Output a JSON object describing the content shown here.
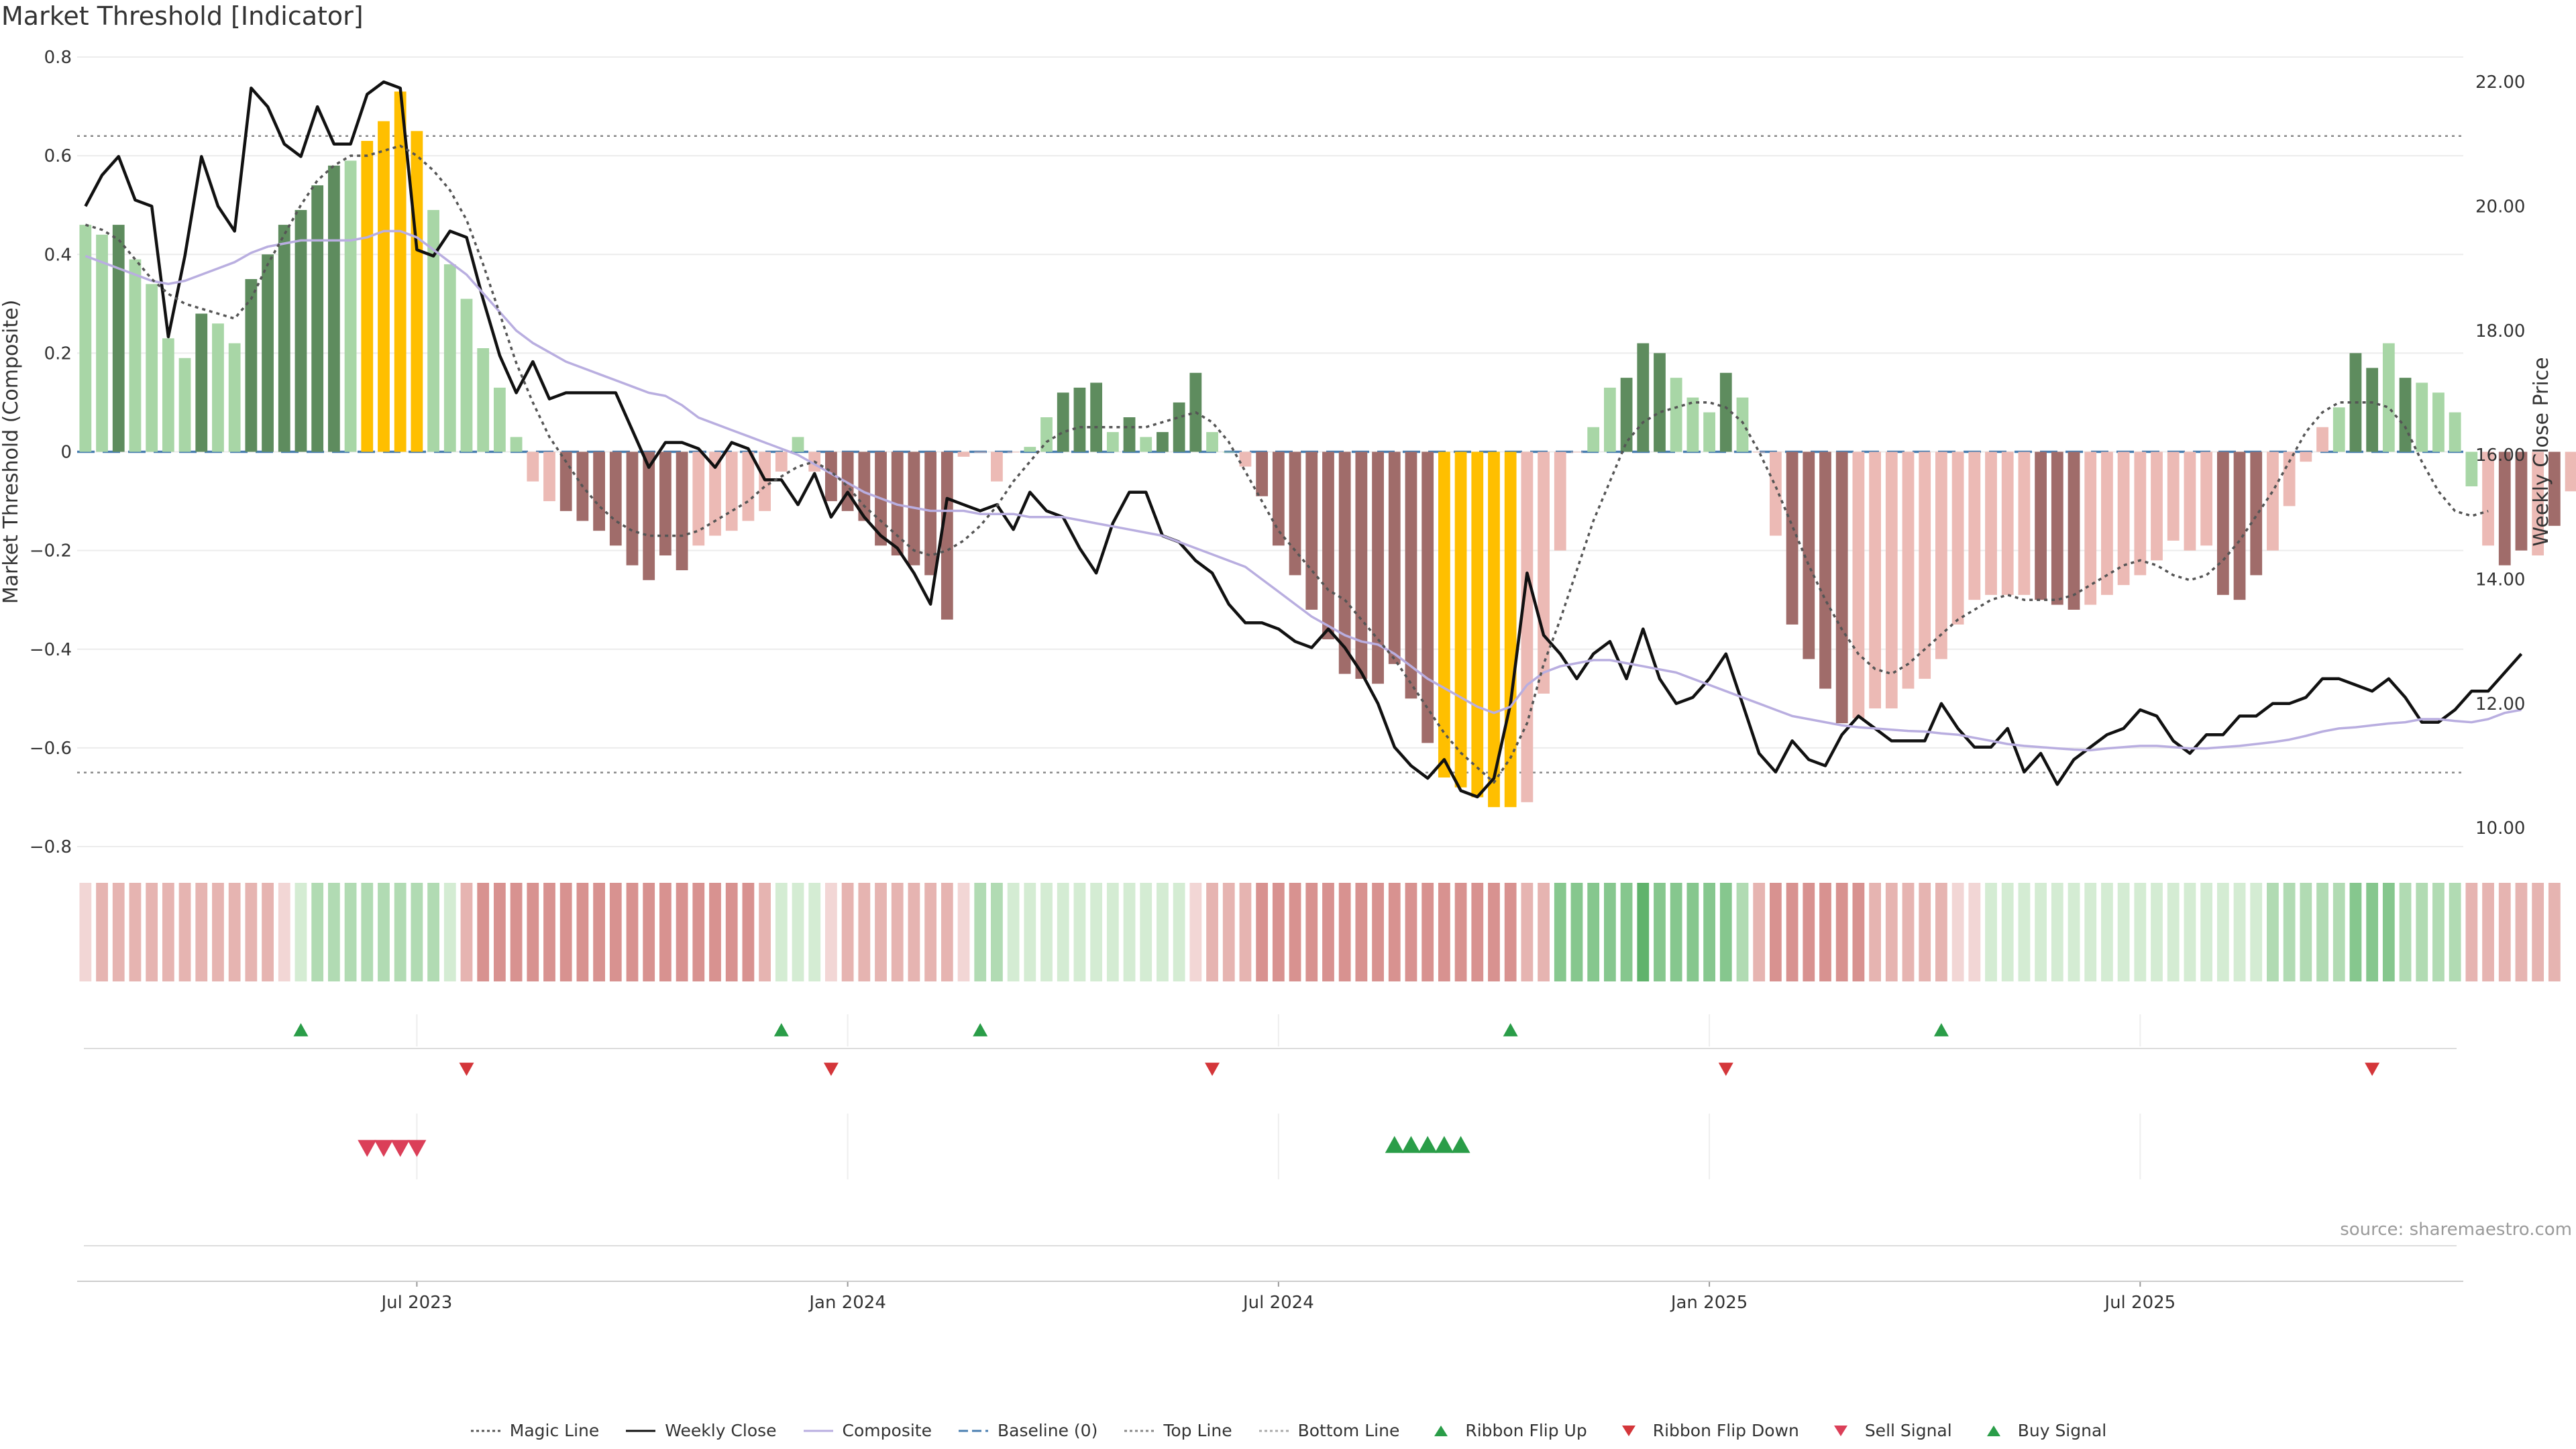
{
  "page": {
    "title": "Market Threshold [Indicator]",
    "source": "source: sharemaestro.com"
  },
  "colors": {
    "green_dark": "#5e8c5e",
    "green_light": "#a8d6a6",
    "red_dark": "#a06c6a",
    "red_light": "#ecbab5",
    "yellow": "#ffbf00",
    "close_line": "#111111",
    "composite_line": "#b9aee0",
    "magic_line": "#555555",
    "baseline": "#4a7fb0",
    "threshold_line": "#888888",
    "up_marker": "#2a9d48",
    "down_marker": "#d4363a",
    "sell_marker": "#db3f58",
    "buy_marker": "#2a9d48"
  },
  "legend": [
    {
      "label": "Magic Line",
      "icon": "dotted-line-icon",
      "color": "#555555"
    },
    {
      "label": "Weekly Close",
      "icon": "solid-line-icon",
      "color": "#111111"
    },
    {
      "label": "Composite",
      "icon": "solid-line-icon",
      "color": "#b9aee0"
    },
    {
      "label": "Baseline (0)",
      "icon": "dashed-line-icon",
      "color": "#4a7fb0"
    },
    {
      "label": "Top Line",
      "icon": "dotted-line-icon",
      "color": "#888888"
    },
    {
      "label": "Bottom Line",
      "icon": "dotted-line-icon",
      "color": "#aaaaaa"
    },
    {
      "label": "Ribbon Flip Up",
      "icon": "triangle-up-icon",
      "color": "#2a9d48"
    },
    {
      "label": "Ribbon Flip Down",
      "icon": "triangle-down-icon",
      "color": "#d4363a"
    },
    {
      "label": "Sell Signal",
      "icon": "triangle-down-icon",
      "color": "#db3f58"
    },
    {
      "label": "Buy Signal",
      "icon": "triangle-up-icon",
      "color": "#2a9d48"
    }
  ],
  "chart_data": {
    "type": "bar",
    "title": "Market Threshold [Indicator]",
    "ylabel": "Market Threshold (Composite)",
    "y2label": "Weekly Close Price",
    "ylim": [
      -0.8,
      0.8
    ],
    "y_ticks": [
      0.8,
      0.6,
      0.4,
      0.2,
      0,
      -0.2,
      -0.4,
      -0.6,
      -0.8
    ],
    "y_tick_labels": [
      "0.8",
      "0.6",
      "0.4",
      "0.2",
      "0",
      "−0.2",
      "−0.4",
      "−0.6",
      "−0.8"
    ],
    "y2lim": [
      9.7,
      22.4
    ],
    "y2_ticks": [
      22,
      20,
      18,
      16,
      14,
      12,
      10
    ],
    "y2_tick_labels": [
      "22.00",
      "20.00",
      "18.00",
      "16.00",
      "14.00",
      "12.00",
      "10.00"
    ],
    "x_range": [
      -0.5,
      143.5
    ],
    "x_ticks": [
      20,
      46,
      72,
      98,
      124
    ],
    "x_tick_labels": [
      "Jul 2023",
      "Jan 2024",
      "Jul 2024",
      "Jan 2025",
      "Jul 2025"
    ],
    "top_line": 0.64,
    "bottom_line": -0.65,
    "baseline": 0,
    "composite_bars": [
      0.46,
      0.44,
      0.46,
      0.39,
      0.34,
      0.23,
      0.19,
      0.28,
      0.26,
      0.22,
      0.35,
      0.4,
      0.46,
      0.49,
      0.54,
      0.58,
      0.59,
      0.63,
      0.67,
      0.73,
      0.65,
      0.49,
      0.38,
      0.31,
      0.21,
      0.13,
      0.03,
      -0.06,
      -0.1,
      -0.12,
      -0.14,
      -0.16,
      -0.19,
      -0.23,
      -0.26,
      -0.21,
      -0.24,
      -0.19,
      -0.17,
      -0.16,
      -0.14,
      -0.12,
      -0.04,
      0.03,
      -0.04,
      -0.1,
      -0.12,
      -0.14,
      -0.19,
      -0.21,
      -0.23,
      -0.25,
      -0.34,
      -0.01,
      0.0,
      -0.06,
      0.0,
      0.01,
      0.07,
      0.12,
      0.13,
      0.14,
      0.04,
      0.07,
      0.03,
      0.04,
      0.1,
      0.16,
      0.04,
      0.0,
      -0.03,
      -0.09,
      -0.19,
      -0.25,
      -0.32,
      -0.38,
      -0.45,
      -0.46,
      -0.47,
      -0.43,
      -0.5,
      -0.59,
      -0.66,
      -0.68,
      -0.7,
      -0.72,
      -0.72,
      -0.71,
      -0.49,
      -0.2,
      -0.0,
      0.05,
      0.13,
      0.15,
      0.22,
      0.2,
      0.15,
      0.11,
      0.08,
      0.16,
      0.11,
      0.0,
      -0.17,
      -0.35,
      -0.42,
      -0.48,
      -0.55,
      -0.54,
      -0.52,
      -0.52,
      -0.48,
      -0.46,
      -0.42,
      -0.35,
      -0.3,
      -0.29,
      -0.29,
      -0.29,
      -0.3,
      -0.31,
      -0.32,
      -0.31,
      -0.29,
      -0.27,
      -0.25,
      -0.22,
      -0.18,
      -0.2,
      -0.19,
      -0.29,
      -0.3,
      -0.25,
      -0.2,
      -0.11,
      -0.02,
      0.05,
      0.09,
      0.2,
      0.17,
      0.22,
      0.15,
      0.14,
      0.12,
      0.08,
      -0.07,
      -0.19,
      -0.23,
      -0.2,
      -0.21,
      -0.15,
      -0.08
    ],
    "bar_colors": [
      "gl",
      "gl",
      "gd",
      "gl",
      "gl",
      "gl",
      "gl",
      "gd",
      "gl",
      "gl",
      "gd",
      "gd",
      "gd",
      "gd",
      "gd",
      "gd",
      "gl",
      "y",
      "y",
      "y",
      "y",
      "gl",
      "gl",
      "gl",
      "gl",
      "gl",
      "gl",
      "rl",
      "rl",
      "rd",
      "rd",
      "rd",
      "rd",
      "rd",
      "rd",
      "rd",
      "rd",
      "rl",
      "rl",
      "rl",
      "rl",
      "rl",
      "rl",
      "gl",
      "rl",
      "rd",
      "rd",
      "rd",
      "rd",
      "rd",
      "rd",
      "rd",
      "rd",
      "rl",
      "rl",
      "rl",
      "rl",
      "gl",
      "gl",
      "gd",
      "gd",
      "gd",
      "gl",
      "gd",
      "gl",
      "gd",
      "gd",
      "gd",
      "gl",
      "gl",
      "rl",
      "rd",
      "rd",
      "rd",
      "rd",
      "rd",
      "rd",
      "rd",
      "rd",
      "rd",
      "rd",
      "rd",
      "y",
      "y",
      "y",
      "y",
      "y",
      "rl",
      "rl",
      "rl",
      "rl",
      "gl",
      "gl",
      "gd",
      "gd",
      "gd",
      "gl",
      "gl",
      "gl",
      "gd",
      "gl",
      "rl",
      "rl",
      "rd",
      "rd",
      "rd",
      "rd",
      "rl",
      "rl",
      "rl",
      "rl",
      "rl",
      "rl",
      "rl",
      "rl",
      "rl",
      "rl",
      "rl",
      "rd",
      "rd",
      "rd",
      "rl",
      "rl",
      "rl",
      "rl",
      "rl",
      "rl",
      "rl",
      "rl",
      "rd",
      "rd",
      "rd",
      "rl",
      "rl",
      "rl",
      "rl",
      "gl",
      "gd",
      "gd",
      "gl",
      "gd",
      "gl",
      "gl",
      "gl",
      "gl",
      "rl",
      "rd",
      "rd",
      "rl",
      "rd",
      "rl",
      "rl"
    ],
    "series": [
      {
        "name": "Weekly Close",
        "axis": "right",
        "values": [
          20.0,
          20.5,
          20.8,
          20.1,
          20.0,
          17.9,
          19.2,
          20.8,
          20.0,
          19.6,
          21.9,
          21.6,
          21.0,
          20.8,
          21.6,
          21.0,
          21.0,
          21.8,
          22.0,
          21.9,
          19.3,
          19.2,
          19.6,
          19.5,
          18.5,
          17.6,
          17.0,
          17.5,
          16.9,
          17.0,
          17.0,
          17.0,
          17.0,
          16.4,
          15.8,
          16.2,
          16.2,
          16.1,
          15.8,
          16.2,
          16.1,
          15.6,
          15.6,
          15.2,
          15.7,
          15.0,
          15.4,
          15.0,
          14.7,
          14.5,
          14.1,
          13.6,
          15.3,
          15.2,
          15.1,
          15.2,
          14.8,
          15.4,
          15.1,
          15.0,
          14.5,
          14.1,
          14.9,
          15.4,
          15.4,
          14.7,
          14.6,
          14.3,
          14.1,
          13.6,
          13.3,
          13.3,
          13.2,
          13.0,
          12.9,
          13.2,
          12.9,
          12.5,
          12.0,
          11.3,
          11.0,
          10.8,
          11.1,
          10.6,
          10.5,
          10.8,
          12.0,
          14.1,
          13.1,
          12.8,
          12.4,
          12.8,
          13.0,
          12.4,
          13.2,
          12.4,
          12.0,
          12.1,
          12.4,
          12.8,
          12.0,
          11.2,
          10.9,
          11.4,
          11.1,
          11.0,
          11.5,
          11.8,
          11.6,
          11.4,
          11.4,
          11.4,
          12.0,
          11.6,
          11.3,
          11.3,
          11.6,
          10.9,
          11.2,
          10.7,
          11.1,
          11.3,
          11.5,
          11.6,
          11.9,
          11.8,
          11.4,
          11.2,
          11.5,
          11.5,
          11.8,
          11.8,
          12.0,
          12.0,
          12.1,
          12.4,
          12.4,
          12.3,
          12.2,
          12.4,
          12.1,
          11.7,
          11.7,
          11.9,
          12.2,
          12.2,
          12.5,
          12.8
        ],
        "color": "#111111"
      },
      {
        "name": "Composite",
        "axis": "right",
        "values": [
          19.2,
          19.1,
          19.0,
          18.9,
          18.8,
          18.75,
          18.8,
          18.9,
          19.0,
          19.1,
          19.25,
          19.35,
          19.4,
          19.45,
          19.45,
          19.45,
          19.45,
          19.5,
          19.6,
          19.6,
          19.5,
          19.3,
          19.1,
          18.9,
          18.6,
          18.3,
          18.0,
          17.8,
          17.65,
          17.5,
          17.4,
          17.3,
          17.2,
          17.1,
          17.0,
          16.95,
          16.8,
          16.6,
          16.5,
          16.4,
          16.3,
          16.2,
          16.1,
          16.0,
          15.85,
          15.7,
          15.55,
          15.4,
          15.3,
          15.2,
          15.15,
          15.1,
          15.1,
          15.1,
          15.05,
          15.05,
          15.05,
          15.0,
          15.0,
          15.0,
          14.95,
          14.9,
          14.85,
          14.8,
          14.75,
          14.7,
          14.6,
          14.5,
          14.4,
          14.3,
          14.2,
          14.0,
          13.8,
          13.6,
          13.4,
          13.25,
          13.1,
          13.0,
          12.95,
          12.8,
          12.6,
          12.4,
          12.25,
          12.1,
          11.95,
          11.85,
          11.95,
          12.3,
          12.5,
          12.6,
          12.65,
          12.7,
          12.7,
          12.65,
          12.6,
          12.55,
          12.5,
          12.4,
          12.3,
          12.2,
          12.1,
          12.0,
          11.9,
          11.8,
          11.75,
          11.7,
          11.65,
          11.62,
          11.6,
          11.58,
          11.56,
          11.55,
          11.52,
          11.5,
          11.45,
          11.4,
          11.35,
          11.32,
          11.3,
          11.28,
          11.26,
          11.25,
          11.28,
          11.3,
          11.32,
          11.32,
          11.3,
          11.28,
          11.28,
          11.3,
          11.32,
          11.35,
          11.38,
          11.42,
          11.48,
          11.55,
          11.6,
          11.62,
          11.65,
          11.68,
          11.7,
          11.75,
          11.75,
          11.72,
          11.7,
          11.75,
          11.85,
          11.9
        ],
        "color": "#b9aee0"
      },
      {
        "name": "Magic Line",
        "axis": "left",
        "values": [
          0.46,
          0.45,
          0.43,
          0.39,
          0.35,
          0.32,
          0.3,
          0.29,
          0.28,
          0.27,
          0.31,
          0.38,
          0.44,
          0.5,
          0.55,
          0.58,
          0.6,
          0.6,
          0.61,
          0.62,
          0.6,
          0.57,
          0.53,
          0.47,
          0.38,
          0.28,
          0.18,
          0.1,
          0.03,
          -0.02,
          -0.07,
          -0.11,
          -0.14,
          -0.16,
          -0.17,
          -0.17,
          -0.17,
          -0.16,
          -0.14,
          -0.12,
          -0.1,
          -0.07,
          -0.05,
          -0.03,
          -0.02,
          -0.04,
          -0.07,
          -0.11,
          -0.14,
          -0.17,
          -0.2,
          -0.21,
          -0.2,
          -0.18,
          -0.15,
          -0.11,
          -0.06,
          -0.02,
          0.02,
          0.04,
          0.05,
          0.05,
          0.05,
          0.05,
          0.05,
          0.06,
          0.07,
          0.08,
          0.06,
          0.02,
          -0.04,
          -0.1,
          -0.16,
          -0.2,
          -0.24,
          -0.28,
          -0.3,
          -0.34,
          -0.38,
          -0.42,
          -0.47,
          -0.52,
          -0.57,
          -0.61,
          -0.64,
          -0.67,
          -0.62,
          -0.55,
          -0.43,
          -0.34,
          -0.24,
          -0.14,
          -0.06,
          0.02,
          0.06,
          0.08,
          0.09,
          0.1,
          0.1,
          0.09,
          0.06,
          0.0,
          -0.07,
          -0.15,
          -0.23,
          -0.3,
          -0.36,
          -0.41,
          -0.44,
          -0.45,
          -0.43,
          -0.4,
          -0.37,
          -0.34,
          -0.32,
          -0.3,
          -0.29,
          -0.3,
          -0.3,
          -0.3,
          -0.29,
          -0.27,
          -0.25,
          -0.23,
          -0.22,
          -0.23,
          -0.25,
          -0.26,
          -0.25,
          -0.22,
          -0.18,
          -0.13,
          -0.08,
          -0.02,
          0.04,
          0.08,
          0.1,
          0.1,
          0.1,
          0.09,
          0.05,
          -0.02,
          -0.08,
          -0.12,
          -0.13,
          -0.12
        ],
        "color": "#555555"
      }
    ],
    "ribbon_levels": [
      -1,
      -2,
      -2,
      -2,
      -2,
      -2,
      -2,
      -2,
      -2,
      -2,
      -2,
      -2,
      -1,
      1,
      2,
      2,
      2,
      2,
      2,
      2,
      2,
      2,
      1,
      -2,
      -3,
      -3,
      -3,
      -3,
      -3,
      -3,
      -3,
      -3,
      -3,
      -3,
      -3,
      -3,
      -3,
      -3,
      -3,
      -3,
      -3,
      -2,
      1,
      1,
      1,
      -1,
      -2,
      -2,
      -2,
      -2,
      -2,
      -2,
      -2,
      -1,
      2,
      2,
      1,
      1,
      1,
      1,
      1,
      1,
      1,
      1,
      1,
      1,
      1,
      -1,
      -2,
      -2,
      -2,
      -3,
      -3,
      -3,
      -3,
      -3,
      -3,
      -3,
      -3,
      -3,
      -3,
      -3,
      -3,
      -3,
      -3,
      -3,
      -3,
      -2,
      -2,
      3,
      3,
      3,
      3,
      3,
      4,
      3,
      3,
      3,
      3,
      3,
      2,
      -2,
      -3,
      -3,
      -3,
      -3,
      -3,
      -3,
      -2,
      -2,
      -2,
      -2,
      -2,
      -1,
      -1,
      1,
      1,
      1,
      1,
      1,
      1,
      1,
      1,
      1,
      1,
      1,
      1,
      1,
      1,
      1,
      1,
      1,
      2,
      2,
      2,
      2,
      2,
      3,
      3,
      3,
      2,
      2,
      2,
      2,
      -2,
      -2,
      -2,
      -2,
      -2,
      -2
    ],
    "ribbon_flip_up": [
      13,
      42,
      54,
      86,
      112
    ],
    "ribbon_flip_down": [
      23,
      45,
      68,
      99,
      138
    ],
    "sell_signals": [
      17,
      18,
      19,
      20
    ],
    "buy_signals": [
      79,
      80,
      81,
      82,
      83
    ]
  }
}
